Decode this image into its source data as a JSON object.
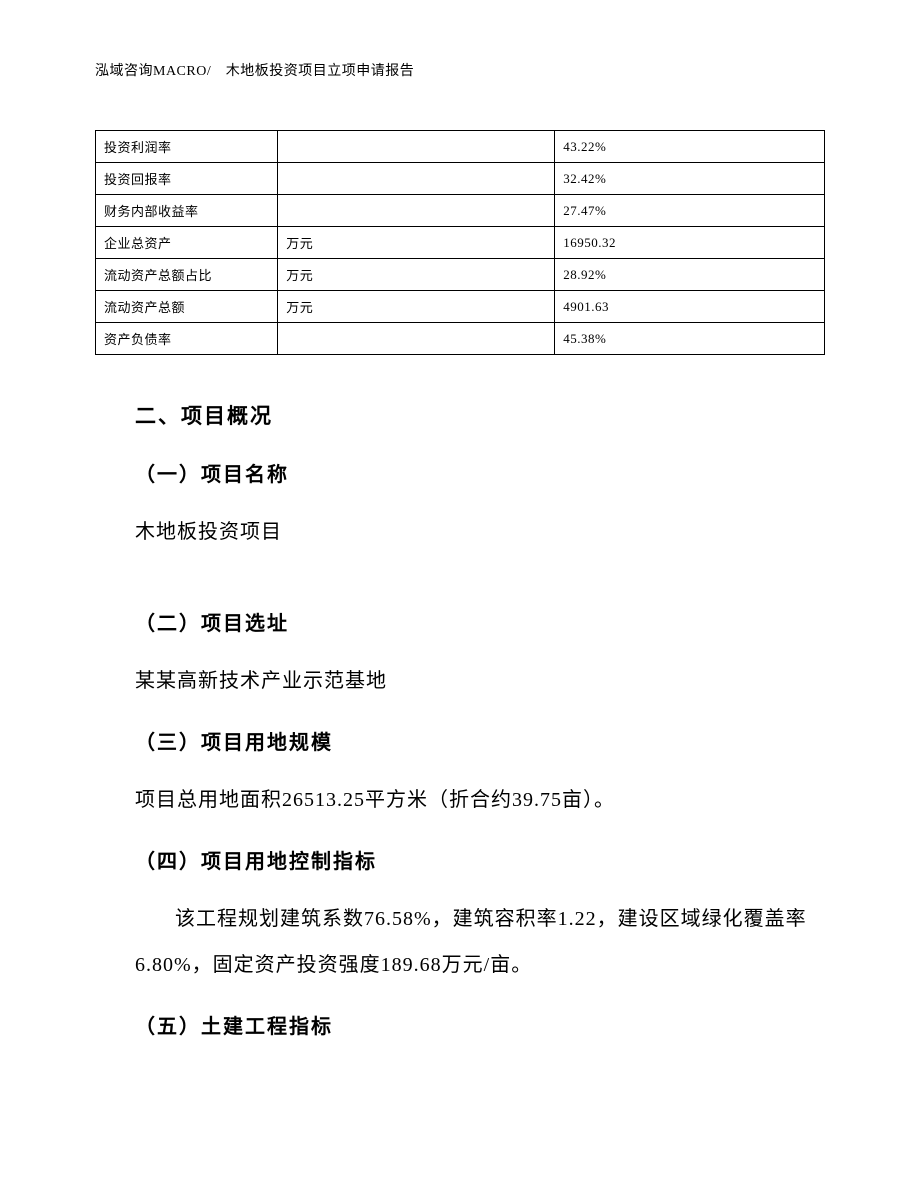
{
  "header": {
    "text": "泓域咨询MACRO/　木地板投资项目立项申请报告"
  },
  "table": {
    "rows": [
      {
        "label": "投资利润率",
        "unit": "",
        "value": "43.22%"
      },
      {
        "label": "投资回报率",
        "unit": "",
        "value": "32.42%"
      },
      {
        "label": "财务内部收益率",
        "unit": "",
        "value": "27.47%"
      },
      {
        "label": "企业总资产",
        "unit": "万元",
        "value": "16950.32"
      },
      {
        "label": "流动资产总额占比",
        "unit": "万元",
        "value": "28.92%"
      },
      {
        "label": "流动资产总额",
        "unit": "万元",
        "value": "4901.63"
      },
      {
        "label": "资产负债率",
        "unit": "",
        "value": "45.38%"
      }
    ]
  },
  "sections": {
    "main_title": "二、项目概况",
    "sub1_title": "（一）项目名称",
    "sub1_text": "木地板投资项目",
    "sub2_title": "（二）项目选址",
    "sub2_text": "某某高新技术产业示范基地",
    "sub3_title": "（三）项目用地规模",
    "sub3_text": "项目总用地面积26513.25平方米（折合约39.75亩）。",
    "sub4_title": "（四）项目用地控制指标",
    "sub4_text": "该工程规划建筑系数76.58%，建筑容积率1.22，建设区域绿化覆盖率6.80%，固定资产投资强度189.68万元/亩。",
    "sub5_title": "（五）土建工程指标"
  }
}
